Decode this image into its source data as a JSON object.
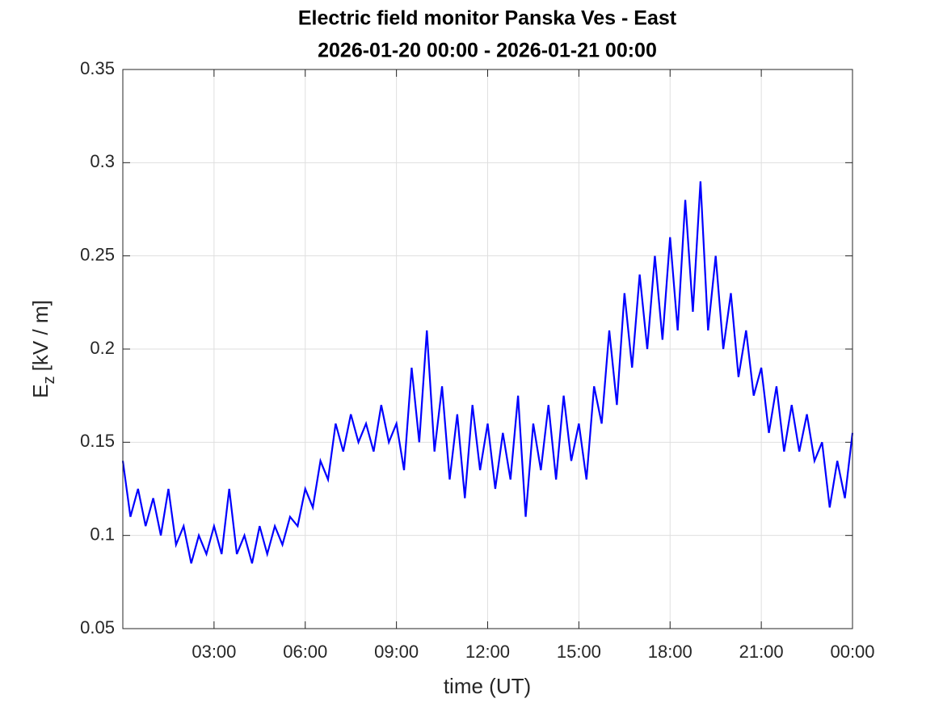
{
  "chart_data": {
    "type": "line",
    "title": [
      "Electric field monitor Panska Ves - East",
      "2026-01-20 00:00 - 2026-01-21 00:00"
    ],
    "xlabel": "time (UT)",
    "ylabel": [
      "E",
      "z",
      "[kV / m]"
    ],
    "x": [
      0,
      0.25,
      0.5,
      0.75,
      1,
      1.25,
      1.5,
      1.75,
      2,
      2.25,
      2.5,
      2.75,
      3,
      3.25,
      3.5,
      3.75,
      4,
      4.25,
      4.5,
      4.75,
      5,
      5.25,
      5.5,
      5.75,
      6,
      6.25,
      6.5,
      6.75,
      7,
      7.25,
      7.5,
      7.75,
      8,
      8.25,
      8.5,
      8.75,
      9,
      9.25,
      9.5,
      9.75,
      10,
      10.25,
      10.5,
      10.75,
      11,
      11.25,
      11.5,
      11.75,
      12,
      12.25,
      12.5,
      12.75,
      13,
      13.25,
      13.5,
      13.75,
      14,
      14.25,
      14.5,
      14.75,
      15,
      15.25,
      15.5,
      15.75,
      16,
      16.25,
      16.5,
      16.75,
      17,
      17.25,
      17.5,
      17.75,
      18,
      18.25,
      18.5,
      18.75,
      19,
      19.25,
      19.5,
      19.75,
      20,
      20.25,
      20.5,
      20.75,
      21,
      21.25,
      21.5,
      21.75,
      22,
      22.25,
      22.5,
      22.75,
      23,
      23.25,
      23.5,
      23.75,
      24
    ],
    "series": [
      {
        "color": "#0000ff",
        "values": [
          0.14,
          0.11,
          0.125,
          0.105,
          0.12,
          0.1,
          0.125,
          0.095,
          0.105,
          0.085,
          0.1,
          0.09,
          0.105,
          0.09,
          0.125,
          0.09,
          0.1,
          0.085,
          0.105,
          0.09,
          0.105,
          0.095,
          0.11,
          0.105,
          0.125,
          0.115,
          0.14,
          0.13,
          0.16,
          0.145,
          0.165,
          0.15,
          0.16,
          0.145,
          0.17,
          0.15,
          0.16,
          0.135,
          0.19,
          0.15,
          0.21,
          0.145,
          0.18,
          0.13,
          0.165,
          0.12,
          0.17,
          0.135,
          0.16,
          0.125,
          0.155,
          0.13,
          0.175,
          0.11,
          0.16,
          0.135,
          0.17,
          0.13,
          0.175,
          0.14,
          0.16,
          0.13,
          0.18,
          0.16,
          0.21,
          0.17,
          0.23,
          0.19,
          0.24,
          0.2,
          0.25,
          0.205,
          0.26,
          0.21,
          0.28,
          0.22,
          0.29,
          0.21,
          0.25,
          0.2,
          0.23,
          0.185,
          0.21,
          0.175,
          0.19,
          0.155,
          0.18,
          0.145,
          0.17,
          0.145,
          0.165,
          0.14,
          0.15,
          0.115,
          0.14,
          0.12,
          0.155
        ]
      }
    ],
    "xlim": [
      0,
      24
    ],
    "xticks": [
      {
        "value": 3,
        "label": "03:00"
      },
      {
        "value": 6,
        "label": "06:00"
      },
      {
        "value": 9,
        "label": "09:00"
      },
      {
        "value": 12,
        "label": "12:00"
      },
      {
        "value": 15,
        "label": "15:00"
      },
      {
        "value": 18,
        "label": "18:00"
      },
      {
        "value": 21,
        "label": "21:00"
      },
      {
        "value": 24,
        "label": "00:00"
      }
    ],
    "ylim": [
      0.05,
      0.35
    ],
    "yticks": [
      0.05,
      0.1,
      0.15,
      0.2,
      0.25,
      0.3,
      0.35
    ],
    "grid": true
  }
}
